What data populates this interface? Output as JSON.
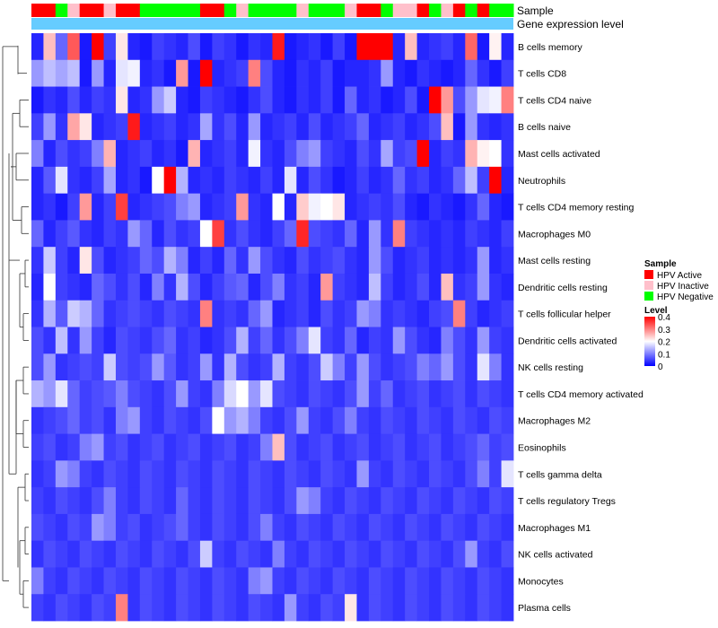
{
  "chart_data": {
    "type": "heatmap",
    "annotation_labels": [
      "Sample",
      "Gene expression level"
    ],
    "sample_groups": [
      {
        "name": "HPV Active",
        "color": "#ff0000"
      },
      {
        "name": "HPV Inactive",
        "color": "#ffc0cb"
      },
      {
        "name": "HPV Negative",
        "color": "#00ff00"
      }
    ],
    "sample_annotation": [
      0,
      0,
      2,
      1,
      0,
      0,
      1,
      0,
      0,
      2,
      2,
      2,
      2,
      2,
      0,
      0,
      2,
      1,
      2,
      2,
      2,
      2,
      1,
      2,
      2,
      2,
      1,
      0,
      0,
      2,
      1,
      1,
      0,
      2,
      1,
      0,
      2,
      0,
      2,
      2
    ],
    "expression_bar_color": "#66ccff",
    "legend": {
      "sample_title": "Sample",
      "level_title": "Level",
      "level_ticks": [
        "0.4",
        "0.3",
        "0.2",
        "0.1",
        "0"
      ]
    },
    "color_scale": {
      "low": "#0000ff",
      "mid": "#ffffff",
      "high": "#ff0000",
      "min": 0,
      "mid_value": 0.2,
      "max": 0.4
    },
    "rows": [
      "B cells memory",
      "T cells CD8",
      "T cells CD4 naive",
      "B cells naive",
      "Mast cells activated",
      "Neutrophils",
      "T cells CD4 memory resting",
      "Macrophages M0",
      "Mast cells resting",
      "Dendritic cells resting",
      "T cells follicular helper",
      "Dendritic cells activated",
      "NK cells resting",
      "T cells CD4 memory activated",
      "Macrophages M2",
      "Eosinophils",
      "T cells gamma delta",
      "T cells regulatory  Tregs",
      "Macrophages M1",
      "NK cells activated",
      "Monocytes",
      "Plasma cells"
    ],
    "values": [
      [
        0.03,
        0.25,
        0.08,
        0.33,
        0.02,
        0.4,
        0.05,
        0.22,
        0.03,
        0.02,
        0.05,
        0.04,
        0.03,
        0.06,
        0.02,
        0.05,
        0.04,
        0.02,
        0.04,
        0.03,
        0.38,
        0.02,
        0.03,
        0.04,
        0.02,
        0.05,
        0.02,
        0.4,
        0.4,
        0.4,
        0.03,
        0.25,
        0.03,
        0.04,
        0.05,
        0.03,
        0.32,
        0.02,
        0.21,
        0.03
      ],
      [
        0.12,
        0.15,
        0.13,
        0.15,
        0.02,
        0.12,
        0.03,
        0.18,
        0.19,
        0.03,
        0.04,
        0.02,
        0.28,
        0.02,
        0.4,
        0.03,
        0.04,
        0.05,
        0.3,
        0.06,
        0.03,
        0.02,
        0.04,
        0.03,
        0.05,
        0.02,
        0.03,
        0.03,
        0.04,
        0.12,
        0.03,
        0.02,
        0.04,
        0.03,
        0.02,
        0.03,
        0.08,
        0.04,
        0.02,
        0.05
      ],
      [
        0.02,
        0.04,
        0.03,
        0.06,
        0.03,
        0.05,
        0.04,
        0.22,
        0.03,
        0.04,
        0.12,
        0.16,
        0.03,
        0.02,
        0.05,
        0.04,
        0.03,
        0.02,
        0.04,
        0.06,
        0.03,
        0.02,
        0.04,
        0.03,
        0.05,
        0.02,
        0.08,
        0.03,
        0.04,
        0.02,
        0.03,
        0.06,
        0.02,
        0.4,
        0.28,
        0.06,
        0.12,
        0.18,
        0.19,
        0.3
      ],
      [
        0.05,
        0.12,
        0.04,
        0.27,
        0.22,
        0.03,
        0.04,
        0.05,
        0.38,
        0.03,
        0.04,
        0.05,
        0.03,
        0.04,
        0.13,
        0.04,
        0.06,
        0.03,
        0.12,
        0.03,
        0.04,
        0.05,
        0.03,
        0.06,
        0.03,
        0.04,
        0.05,
        0.08,
        0.03,
        0.04,
        0.05,
        0.03,
        0.04,
        0.06,
        0.25,
        0.02,
        0.12,
        0.04,
        0.03,
        0.04
      ],
      [
        0.1,
        0.03,
        0.06,
        0.04,
        0.05,
        0.1,
        0.26,
        0.03,
        0.04,
        0.05,
        0.03,
        0.04,
        0.02,
        0.26,
        0.03,
        0.04,
        0.05,
        0.03,
        0.19,
        0.04,
        0.03,
        0.06,
        0.1,
        0.12,
        0.05,
        0.04,
        0.03,
        0.06,
        0.04,
        0.13,
        0.05,
        0.06,
        0.4,
        0.03,
        0.05,
        0.04,
        0.26,
        0.21,
        0.2,
        0.04
      ],
      [
        0.03,
        0.07,
        0.18,
        0.04,
        0.03,
        0.05,
        0.13,
        0.03,
        0.04,
        0.02,
        0.2,
        0.4,
        0.14,
        0.03,
        0.04,
        0.03,
        0.05,
        0.04,
        0.03,
        0.05,
        0.03,
        0.18,
        0.03,
        0.06,
        0.04,
        0.02,
        0.03,
        0.05,
        0.03,
        0.04,
        0.08,
        0.04,
        0.05,
        0.03,
        0.04,
        0.08,
        0.15,
        0.05,
        0.4,
        0.03
      ],
      [
        0.03,
        0.04,
        0.02,
        0.05,
        0.28,
        0.03,
        0.05,
        0.35,
        0.03,
        0.04,
        0.05,
        0.06,
        0.1,
        0.12,
        0.03,
        0.04,
        0.05,
        0.28,
        0.04,
        0.03,
        0.2,
        0.03,
        0.24,
        0.19,
        0.2,
        0.22,
        0.03,
        0.04,
        0.05,
        0.04,
        0.06,
        0.03,
        0.02,
        0.04,
        0.03,
        0.02,
        0.04,
        0.08,
        0.03,
        0.02
      ],
      [
        0.08,
        0.03,
        0.05,
        0.07,
        0.04,
        0.03,
        0.05,
        0.04,
        0.12,
        0.08,
        0.03,
        0.06,
        0.04,
        0.05,
        0.2,
        0.35,
        0.04,
        0.06,
        0.04,
        0.03,
        0.05,
        0.08,
        0.37,
        0.06,
        0.05,
        0.04,
        0.08,
        0.03,
        0.12,
        0.04,
        0.3,
        0.05,
        0.04,
        0.03,
        0.04,
        0.03,
        0.05,
        0.04,
        0.03,
        0.05
      ],
      [
        0.04,
        0.16,
        0.05,
        0.03,
        0.22,
        0.06,
        0.03,
        0.04,
        0.05,
        0.08,
        0.06,
        0.14,
        0.1,
        0.03,
        0.05,
        0.03,
        0.08,
        0.04,
        0.12,
        0.06,
        0.04,
        0.03,
        0.06,
        0.04,
        0.05,
        0.06,
        0.04,
        0.03,
        0.12,
        0.06,
        0.03,
        0.04,
        0.05,
        0.03,
        0.04,
        0.03,
        0.04,
        0.12,
        0.03,
        0.04
      ],
      [
        0.03,
        0.2,
        0.05,
        0.04,
        0.03,
        0.08,
        0.06,
        0.04,
        0.06,
        0.03,
        0.1,
        0.04,
        0.14,
        0.06,
        0.03,
        0.05,
        0.07,
        0.08,
        0.03,
        0.06,
        0.1,
        0.04,
        0.05,
        0.03,
        0.28,
        0.05,
        0.04,
        0.03,
        0.15,
        0.05,
        0.03,
        0.04,
        0.06,
        0.03,
        0.25,
        0.04,
        0.05,
        0.12,
        0.04,
        0.03
      ],
      [
        0.04,
        0.14,
        0.07,
        0.16,
        0.14,
        0.08,
        0.04,
        0.05,
        0.06,
        0.05,
        0.04,
        0.06,
        0.05,
        0.04,
        0.3,
        0.04,
        0.05,
        0.04,
        0.08,
        0.12,
        0.03,
        0.04,
        0.05,
        0.03,
        0.06,
        0.04,
        0.05,
        0.12,
        0.1,
        0.04,
        0.05,
        0.04,
        0.03,
        0.05,
        0.06,
        0.3,
        0.05,
        0.03,
        0.04,
        0.05
      ],
      [
        0.06,
        0.04,
        0.15,
        0.04,
        0.12,
        0.05,
        0.03,
        0.06,
        0.05,
        0.04,
        0.06,
        0.08,
        0.04,
        0.05,
        0.03,
        0.04,
        0.06,
        0.14,
        0.05,
        0.08,
        0.04,
        0.06,
        0.1,
        0.18,
        0.05,
        0.04,
        0.08,
        0.03,
        0.05,
        0.04,
        0.12,
        0.06,
        0.04,
        0.03,
        0.1,
        0.06,
        0.04,
        0.12,
        0.05,
        0.04
      ],
      [
        0.06,
        0.12,
        0.04,
        0.05,
        0.06,
        0.05,
        0.16,
        0.06,
        0.05,
        0.06,
        0.12,
        0.07,
        0.04,
        0.05,
        0.12,
        0.04,
        0.14,
        0.06,
        0.04,
        0.05,
        0.14,
        0.05,
        0.04,
        0.06,
        0.16,
        0.1,
        0.05,
        0.12,
        0.06,
        0.04,
        0.05,
        0.06,
        0.1,
        0.08,
        0.12,
        0.06,
        0.04,
        0.18,
        0.1,
        0.04
      ],
      [
        0.14,
        0.12,
        0.18,
        0.08,
        0.05,
        0.06,
        0.07,
        0.1,
        0.06,
        0.05,
        0.04,
        0.06,
        0.12,
        0.05,
        0.04,
        0.1,
        0.17,
        0.2,
        0.12,
        0.18,
        0.06,
        0.05,
        0.04,
        0.06,
        0.05,
        0.04,
        0.06,
        0.12,
        0.05,
        0.08,
        0.04,
        0.05,
        0.06,
        0.04,
        0.05,
        0.06,
        0.04,
        0.06,
        0.05,
        0.04
      ],
      [
        0.04,
        0.05,
        0.06,
        0.08,
        0.05,
        0.06,
        0.04,
        0.1,
        0.12,
        0.05,
        0.04,
        0.06,
        0.05,
        0.04,
        0.06,
        0.2,
        0.12,
        0.14,
        0.1,
        0.05,
        0.04,
        0.06,
        0.12,
        0.05,
        0.04,
        0.06,
        0.1,
        0.05,
        0.04,
        0.06,
        0.05,
        0.04,
        0.06,
        0.05,
        0.04,
        0.06,
        0.05,
        0.04,
        0.06,
        0.05
      ],
      [
        0.05,
        0.06,
        0.04,
        0.05,
        0.1,
        0.12,
        0.05,
        0.06,
        0.04,
        0.05,
        0.06,
        0.04,
        0.05,
        0.06,
        0.04,
        0.05,
        0.06,
        0.04,
        0.05,
        0.1,
        0.25,
        0.06,
        0.04,
        0.05,
        0.06,
        0.04,
        0.05,
        0.06,
        0.04,
        0.05,
        0.06,
        0.04,
        0.05,
        0.06,
        0.04,
        0.05,
        0.06,
        0.08,
        0.05,
        0.06
      ],
      [
        0.04,
        0.05,
        0.12,
        0.1,
        0.05,
        0.04,
        0.06,
        0.05,
        0.04,
        0.06,
        0.05,
        0.04,
        0.06,
        0.05,
        0.04,
        0.06,
        0.05,
        0.04,
        0.06,
        0.05,
        0.04,
        0.06,
        0.05,
        0.04,
        0.06,
        0.05,
        0.04,
        0.12,
        0.05,
        0.04,
        0.06,
        0.05,
        0.04,
        0.06,
        0.05,
        0.04,
        0.06,
        0.1,
        0.05,
        0.18
      ],
      [
        0.05,
        0.04,
        0.06,
        0.05,
        0.04,
        0.06,
        0.1,
        0.05,
        0.04,
        0.06,
        0.05,
        0.04,
        0.08,
        0.05,
        0.04,
        0.06,
        0.05,
        0.04,
        0.06,
        0.05,
        0.04,
        0.06,
        0.12,
        0.1,
        0.05,
        0.04,
        0.06,
        0.05,
        0.04,
        0.06,
        0.05,
        0.04,
        0.06,
        0.05,
        0.04,
        0.06,
        0.05,
        0.04,
        0.06,
        0.05
      ],
      [
        0.06,
        0.05,
        0.04,
        0.06,
        0.05,
        0.12,
        0.1,
        0.05,
        0.06,
        0.04,
        0.05,
        0.06,
        0.08,
        0.05,
        0.04,
        0.06,
        0.05,
        0.04,
        0.06,
        0.1,
        0.05,
        0.04,
        0.06,
        0.05,
        0.04,
        0.06,
        0.05,
        0.04,
        0.06,
        0.05,
        0.04,
        0.06,
        0.05,
        0.04,
        0.06,
        0.05,
        0.04,
        0.06,
        0.05,
        0.04
      ],
      [
        0.04,
        0.06,
        0.05,
        0.04,
        0.06,
        0.05,
        0.04,
        0.06,
        0.05,
        0.04,
        0.06,
        0.05,
        0.04,
        0.06,
        0.16,
        0.05,
        0.04,
        0.06,
        0.05,
        0.04,
        0.1,
        0.05,
        0.04,
        0.06,
        0.05,
        0.04,
        0.06,
        0.05,
        0.04,
        0.06,
        0.05,
        0.04,
        0.06,
        0.05,
        0.04,
        0.06,
        0.12,
        0.05,
        0.04,
        0.06
      ],
      [
        0.1,
        0.05,
        0.04,
        0.06,
        0.05,
        0.04,
        0.06,
        0.05,
        0.04,
        0.06,
        0.05,
        0.04,
        0.06,
        0.05,
        0.04,
        0.06,
        0.05,
        0.04,
        0.1,
        0.12,
        0.05,
        0.04,
        0.06,
        0.05,
        0.04,
        0.06,
        0.05,
        0.04,
        0.06,
        0.05,
        0.04,
        0.06,
        0.05,
        0.04,
        0.06,
        0.05,
        0.04,
        0.06,
        0.05,
        0.04
      ],
      [
        0.05,
        0.04,
        0.06,
        0.05,
        0.04,
        0.06,
        0.05,
        0.3,
        0.04,
        0.06,
        0.05,
        0.04,
        0.06,
        0.05,
        0.04,
        0.06,
        0.05,
        0.04,
        0.06,
        0.05,
        0.04,
        0.12,
        0.05,
        0.04,
        0.06,
        0.05,
        0.22,
        0.04,
        0.06,
        0.05,
        0.04,
        0.06,
        0.05,
        0.04,
        0.06,
        0.05,
        0.04,
        0.06,
        0.05,
        0.04
      ]
    ]
  }
}
